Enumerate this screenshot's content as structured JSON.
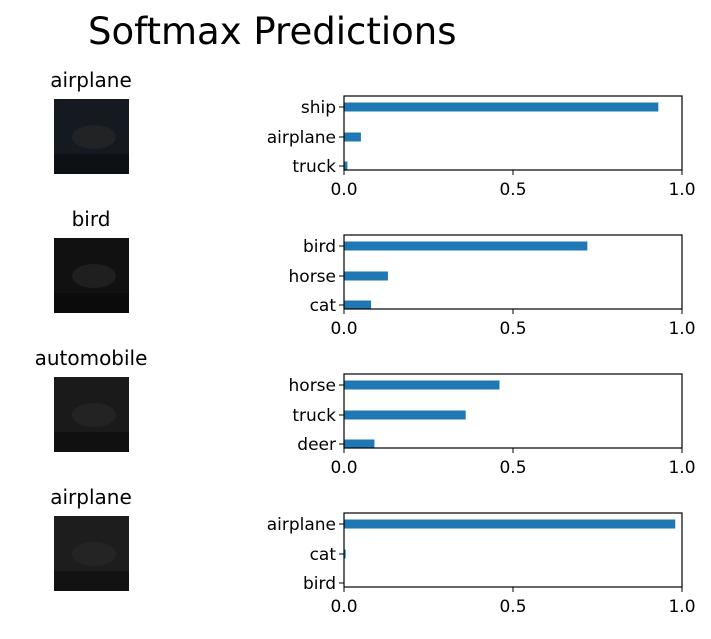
{
  "figure": {
    "title": "Softmax Predictions"
  },
  "colors": {
    "bar": "#1f77b4",
    "axis": "#000000"
  },
  "chart_data": [
    {
      "type": "bar",
      "orientation": "horizontal",
      "title": "airplane",
      "categories": [
        "ship",
        "airplane",
        "truck"
      ],
      "values": [
        0.93,
        0.05,
        0.01
      ],
      "xlim": [
        0,
        1.0
      ],
      "xticks": [
        "0.0",
        "0.5",
        "1.0"
      ],
      "image_description": "dark ship thumbnail",
      "image_tone": "#141a20"
    },
    {
      "type": "bar",
      "orientation": "horizontal",
      "title": "bird",
      "categories": [
        "bird",
        "horse",
        "cat"
      ],
      "values": [
        0.72,
        0.13,
        0.08
      ],
      "xlim": [
        0,
        1.0
      ],
      "xticks": [
        "0.0",
        "0.5",
        "1.0"
      ],
      "image_tone": "#111111"
    },
    {
      "type": "bar",
      "orientation": "horizontal",
      "title": "automobile",
      "categories": [
        "horse",
        "truck",
        "deer"
      ],
      "values": [
        0.46,
        0.36,
        0.09
      ],
      "xlim": [
        0,
        1.0
      ],
      "xticks": [
        "0.0",
        "0.5",
        "1.0"
      ],
      "image_tone": "#1a1a1a"
    },
    {
      "type": "bar",
      "orientation": "horizontal",
      "title": "airplane",
      "categories": [
        "airplane",
        "cat",
        "bird"
      ],
      "values": [
        0.98,
        0.005,
        0.001
      ],
      "xlim": [
        0,
        1.0
      ],
      "xticks": [
        "0.0",
        "0.5",
        "1.0"
      ],
      "image_tone": "#1d1d1d"
    }
  ]
}
